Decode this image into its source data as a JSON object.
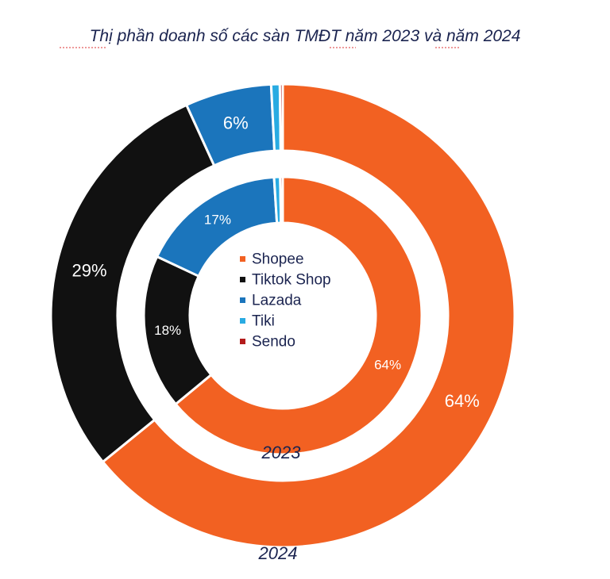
{
  "chart_data": {
    "type": "donut",
    "title": "Thị phần doanh số các sàn TMĐT năm 2023 và năm 2024",
    "categories": [
      "Shopee",
      "Tiktok Shop",
      "Lazada",
      "Tiki",
      "Sendo"
    ],
    "colors": [
      "#f26122",
      "#111111",
      "#1b75bc",
      "#29abe2",
      "#b31b1b"
    ],
    "series": [
      {
        "name": "2024",
        "ring": "outer",
        "values": [
          64,
          29,
          6,
          0.6,
          0.2
        ],
        "labels": [
          "64%",
          "29%",
          "6%",
          "",
          ""
        ]
      },
      {
        "name": "2023",
        "ring": "inner",
        "values": [
          64,
          18,
          17,
          0.7,
          0.3
        ],
        "labels": [
          "64%",
          "18%",
          "17%",
          "",
          ""
        ]
      }
    ],
    "legend_position": "center"
  }
}
